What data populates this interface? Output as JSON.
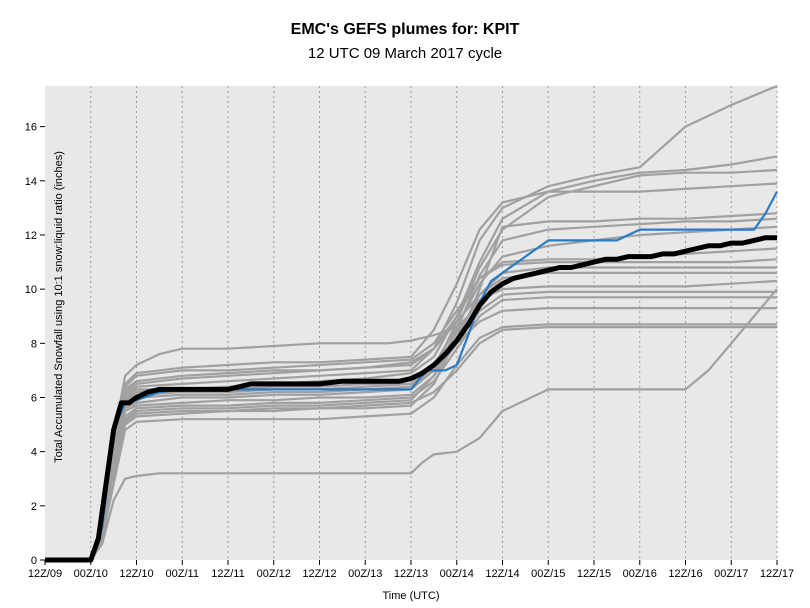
{
  "title": "EMC's GEFS plumes for: KPIT",
  "subtitle": "12 UTC 09 March 2017 cycle",
  "colors": {
    "background": "#e8e8e8",
    "members": "#a0a0a0",
    "highlight": "#2a7bc4",
    "mean": "#000000",
    "grid": "#9a9a9a"
  },
  "chart_data": {
    "type": "line",
    "title": "EMC's GEFS plumes for: KPIT",
    "subtitle": "12 UTC 09 March 2017 cycle",
    "xlabel": "Time (UTC)",
    "ylabel": "Total Accumulated Snowfall using 10:1 snow:liquid ratio (inches)",
    "ylim": [
      0,
      17.5
    ],
    "yticks": [
      0,
      2,
      4,
      6,
      8,
      10,
      12,
      14,
      16
    ],
    "xtick_hours": [
      0,
      12,
      24,
      36,
      48,
      60,
      72,
      84,
      96,
      108,
      120,
      132,
      144,
      156,
      168,
      180,
      192
    ],
    "xticks": [
      "12Z/09",
      "00Z/10",
      "12Z/10",
      "00Z/11",
      "12Z/11",
      "00Z/12",
      "12Z/12",
      "00Z/13",
      "12Z/13",
      "00Z/14",
      "12Z/14",
      "00Z/15",
      "12Z/15",
      "00Z/16",
      "12Z/16",
      "00Z/17",
      "12Z/17"
    ],
    "grid": true,
    "members": [
      {
        "x": [
          0,
          12,
          15,
          18,
          21,
          24,
          30,
          36,
          48,
          60,
          72,
          84,
          90,
          96,
          102,
          108,
          111,
          114,
          120,
          132,
          144,
          156,
          168,
          180,
          192
        ],
        "y": [
          0,
          0,
          1.5,
          4.5,
          6.8,
          7.2,
          7.6,
          7.8,
          7.8,
          7.9,
          8.0,
          8.0,
          8.0,
          8.1,
          8.3,
          8.6,
          9.0,
          10.0,
          12.3,
          12.5,
          12.5,
          12.6,
          12.6,
          12.7,
          12.8
        ]
      },
      {
        "x": [
          0,
          12,
          15,
          18,
          21,
          24,
          36,
          48,
          60,
          72,
          84,
          96,
          102,
          108,
          114,
          120,
          132,
          144,
          156,
          168,
          180,
          192
        ],
        "y": [
          0,
          0,
          1.2,
          4.0,
          6.2,
          6.5,
          6.7,
          6.8,
          6.9,
          7.0,
          7.1,
          7.3,
          7.8,
          9.5,
          11.8,
          13.0,
          13.8,
          14.2,
          14.5,
          16.0,
          16.8,
          17.5
        ]
      },
      {
        "x": [
          0,
          12,
          15,
          18,
          21,
          24,
          36,
          48,
          60,
          72,
          84,
          96,
          102,
          108,
          114,
          120,
          132,
          144,
          156,
          168,
          180,
          192
        ],
        "y": [
          0,
          0,
          1.1,
          3.8,
          6.0,
          6.3,
          6.3,
          6.4,
          6.5,
          6.6,
          6.7,
          6.9,
          7.5,
          9.0,
          11.0,
          12.6,
          13.6,
          14.0,
          14.3,
          14.4,
          14.6,
          14.9
        ]
      },
      {
        "x": [
          0,
          12,
          15,
          18,
          21,
          24,
          36,
          48,
          60,
          72,
          84,
          96,
          102,
          108,
          114,
          120,
          132,
          144,
          156,
          168,
          180,
          192
        ],
        "y": [
          0,
          0,
          1.0,
          3.5,
          5.6,
          5.8,
          6.0,
          6.0,
          6.1,
          6.1,
          6.2,
          6.3,
          7.0,
          8.8,
          10.8,
          12.2,
          13.4,
          13.8,
          14.2,
          14.3,
          14.3,
          14.4
        ]
      },
      {
        "x": [
          0,
          12,
          15,
          18,
          21,
          24,
          36,
          48,
          60,
          72,
          84,
          96,
          102,
          108,
          114,
          120,
          132,
          144,
          156,
          168,
          180,
          192
        ],
        "y": [
          0,
          0,
          1.3,
          4.3,
          6.5,
          6.9,
          7.1,
          7.2,
          7.3,
          7.3,
          7.4,
          7.5,
          8.5,
          10.2,
          12.2,
          13.2,
          13.6,
          13.6,
          13.6,
          13.7,
          13.8,
          13.9
        ]
      },
      {
        "x": [
          0,
          12,
          15,
          18,
          21,
          24,
          36,
          48,
          60,
          72,
          84,
          96,
          102,
          108,
          114,
          120,
          132,
          144,
          156,
          168,
          180,
          192
        ],
        "y": [
          0,
          0,
          0.9,
          3.2,
          5.2,
          5.5,
          5.6,
          5.6,
          5.7,
          5.7,
          5.8,
          5.9,
          6.8,
          8.5,
          10.5,
          11.8,
          12.2,
          12.3,
          12.4,
          12.5,
          12.5,
          12.6
        ]
      },
      {
        "x": [
          0,
          12,
          15,
          18,
          21,
          24,
          36,
          48,
          60,
          72,
          84,
          96,
          102,
          108,
          114,
          120,
          132,
          144,
          156,
          168,
          180,
          192
        ],
        "y": [
          0,
          0,
          1.0,
          3.6,
          5.9,
          6.2,
          6.3,
          6.3,
          6.4,
          6.4,
          6.5,
          6.5,
          7.2,
          8.6,
          10.2,
          11.2,
          11.6,
          11.8,
          12.0,
          12.1,
          12.2,
          12.3
        ]
      },
      {
        "x": [
          0,
          12,
          15,
          18,
          21,
          24,
          36,
          48,
          60,
          72,
          84,
          96,
          102,
          108,
          114,
          120,
          132,
          144,
          156,
          168,
          180,
          192
        ],
        "y": [
          0,
          0,
          1.2,
          4.1,
          6.3,
          6.6,
          6.8,
          6.9,
          7.0,
          7.0,
          7.1,
          7.2,
          7.8,
          9.0,
          10.4,
          11.0,
          11.1,
          11.1,
          11.2,
          11.3,
          11.4,
          11.5
        ]
      },
      {
        "x": [
          0,
          12,
          15,
          18,
          21,
          24,
          36,
          48,
          60,
          72,
          84,
          96,
          102,
          108,
          114,
          120,
          132,
          144,
          156,
          168,
          180,
          192
        ],
        "y": [
          0,
          0,
          0.8,
          3.0,
          5.0,
          5.3,
          5.4,
          5.5,
          5.5,
          5.6,
          5.6,
          5.7,
          6.5,
          8.2,
          9.8,
          10.6,
          10.8,
          10.8,
          10.8,
          10.8,
          10.8,
          10.8
        ]
      },
      {
        "x": [
          0,
          12,
          15,
          18,
          21,
          24,
          36,
          48,
          60,
          72,
          84,
          96,
          102,
          108,
          114,
          120,
          132,
          144,
          156,
          168,
          180,
          192
        ],
        "y": [
          0,
          0,
          1.1,
          3.9,
          6.1,
          6.4,
          6.5,
          6.6,
          6.7,
          6.8,
          6.9,
          7.0,
          7.8,
          8.8,
          9.8,
          10.4,
          10.6,
          10.6,
          10.6,
          10.6,
          10.6,
          10.6
        ]
      },
      {
        "x": [
          0,
          12,
          15,
          18,
          21,
          24,
          36,
          48,
          60,
          72,
          84,
          96,
          102,
          108,
          114,
          120,
          132,
          144,
          156,
          168,
          180,
          192
        ],
        "y": [
          0,
          0,
          1.0,
          3.4,
          5.5,
          5.7,
          5.8,
          5.9,
          5.9,
          6.0,
          6.0,
          6.1,
          6.8,
          8.0,
          9.2,
          9.8,
          9.9,
          9.9,
          9.9,
          9.9,
          9.9,
          9.9
        ]
      },
      {
        "x": [
          0,
          12,
          15,
          18,
          21,
          24,
          36,
          48,
          60,
          72,
          84,
          96,
          102,
          108,
          114,
          120,
          132,
          144,
          156,
          168,
          180,
          192
        ],
        "y": [
          0,
          0,
          0.9,
          3.3,
          5.3,
          5.6,
          5.7,
          5.7,
          5.8,
          5.8,
          5.9,
          6.0,
          6.6,
          7.8,
          9.0,
          9.6,
          9.7,
          9.7,
          9.7,
          9.7,
          9.7,
          9.7
        ]
      },
      {
        "x": [
          0,
          12,
          15,
          18,
          21,
          24,
          36,
          48,
          60,
          72,
          84,
          96,
          102,
          108,
          114,
          120,
          132,
          144,
          156,
          168,
          180,
          192
        ],
        "y": [
          0,
          0,
          1.1,
          3.7,
          5.8,
          6.1,
          6.2,
          6.2,
          6.3,
          6.3,
          6.4,
          6.5,
          7.0,
          8.0,
          8.8,
          9.2,
          9.3,
          9.3,
          9.3,
          9.3,
          9.3,
          9.3
        ]
      },
      {
        "x": [
          0,
          12,
          15,
          18,
          21,
          24,
          36,
          48,
          60,
          72,
          84,
          96,
          102,
          108,
          114,
          120,
          132,
          144,
          156,
          168,
          180,
          192
        ],
        "y": [
          0,
          0,
          0.8,
          2.8,
          4.8,
          5.1,
          5.2,
          5.2,
          5.2,
          5.2,
          5.3,
          5.4,
          6.0,
          7.2,
          8.2,
          8.6,
          8.7,
          8.7,
          8.7,
          8.7,
          8.7,
          8.7
        ]
      },
      {
        "x": [
          0,
          12,
          15,
          18,
          21,
          24,
          36,
          48,
          60,
          72,
          84,
          96,
          102,
          108,
          114,
          120,
          132,
          144,
          156,
          168,
          180,
          192
        ],
        "y": [
          0,
          0,
          0.9,
          3.1,
          5.1,
          5.4,
          5.5,
          5.5,
          5.6,
          5.6,
          5.7,
          5.8,
          6.2,
          7.0,
          8.0,
          8.5,
          8.6,
          8.6,
          8.6,
          8.6,
          8.6,
          8.6
        ]
      },
      {
        "x": [
          0,
          12,
          15,
          18,
          21,
          24,
          36,
          48,
          60,
          72,
          84,
          96,
          102,
          108,
          114,
          120,
          132,
          144,
          156,
          168,
          180,
          192
        ],
        "y": [
          0,
          0,
          1.2,
          4.2,
          6.4,
          6.8,
          7.0,
          7.0,
          7.1,
          7.2,
          7.3,
          7.4,
          8.0,
          9.2,
          10.4,
          10.9,
          11.0,
          11.0,
          11.0,
          11.0,
          11.0,
          11.1
        ]
      },
      {
        "x": [
          0,
          12,
          15,
          18,
          21,
          24,
          36,
          48,
          60,
          72,
          84,
          96,
          102,
          108,
          114,
          120,
          132,
          144,
          156,
          168,
          180,
          192
        ],
        "y": [
          0,
          0,
          1.0,
          3.5,
          5.7,
          6.0,
          6.1,
          6.1,
          6.2,
          6.2,
          6.3,
          6.4,
          7.0,
          8.4,
          9.6,
          10.0,
          10.1,
          10.1,
          10.1,
          10.1,
          10.2,
          10.3
        ]
      },
      {
        "x": [
          0,
          12,
          15,
          18,
          21,
          24,
          30,
          36,
          48,
          60,
          72,
          84,
          96,
          99,
          102,
          108,
          114,
          120,
          132,
          144,
          156,
          168,
          174,
          180,
          192
        ],
        "y": [
          0,
          0,
          0.6,
          2.2,
          3.0,
          3.1,
          3.2,
          3.2,
          3.2,
          3.2,
          3.2,
          3.2,
          3.2,
          3.6,
          3.9,
          4.0,
          4.5,
          5.5,
          6.3,
          6.3,
          6.3,
          6.3,
          7.0,
          8.0,
          10.0
        ]
      }
    ],
    "highlight": {
      "x": [
        0,
        12,
        15,
        18,
        21,
        24,
        30,
        36,
        48,
        60,
        72,
        84,
        90,
        96,
        100,
        102,
        105,
        108,
        111,
        114,
        117,
        120,
        126,
        132,
        138,
        144,
        150,
        156,
        162,
        168,
        174,
        180,
        186,
        189,
        192
      ],
      "y": [
        0,
        0,
        1.2,
        4.8,
        5.8,
        5.9,
        6.2,
        6.3,
        6.3,
        6.3,
        6.3,
        6.3,
        6.3,
        6.3,
        7.0,
        7.0,
        7.0,
        7.2,
        8.3,
        9.5,
        10.3,
        10.6,
        11.2,
        11.8,
        11.8,
        11.8,
        11.8,
        12.2,
        12.2,
        12.2,
        12.2,
        12.2,
        12.2,
        12.8,
        13.6
      ]
    },
    "mean": {
      "x": [
        0,
        12,
        14,
        16,
        18,
        20,
        22,
        24,
        27,
        30,
        33,
        36,
        42,
        48,
        54,
        60,
        66,
        72,
        78,
        84,
        87,
        90,
        93,
        96,
        99,
        102,
        105,
        108,
        111,
        114,
        117,
        120,
        123,
        126,
        129,
        132,
        135,
        138,
        141,
        144,
        147,
        150,
        153,
        156,
        159,
        162,
        165,
        168,
        171,
        174,
        177,
        180,
        183,
        186,
        189,
        192
      ],
      "y": [
        0,
        0,
        0.8,
        2.8,
        4.8,
        5.8,
        5.8,
        6.0,
        6.2,
        6.3,
        6.3,
        6.3,
        6.3,
        6.3,
        6.5,
        6.5,
        6.5,
        6.5,
        6.6,
        6.6,
        6.6,
        6.6,
        6.6,
        6.7,
        6.9,
        7.2,
        7.6,
        8.1,
        8.7,
        9.4,
        9.9,
        10.2,
        10.4,
        10.5,
        10.6,
        10.7,
        10.8,
        10.8,
        10.9,
        11.0,
        11.1,
        11.1,
        11.2,
        11.2,
        11.2,
        11.3,
        11.3,
        11.4,
        11.5,
        11.6,
        11.6,
        11.7,
        11.7,
        11.8,
        11.9,
        11.9
      ]
    }
  }
}
